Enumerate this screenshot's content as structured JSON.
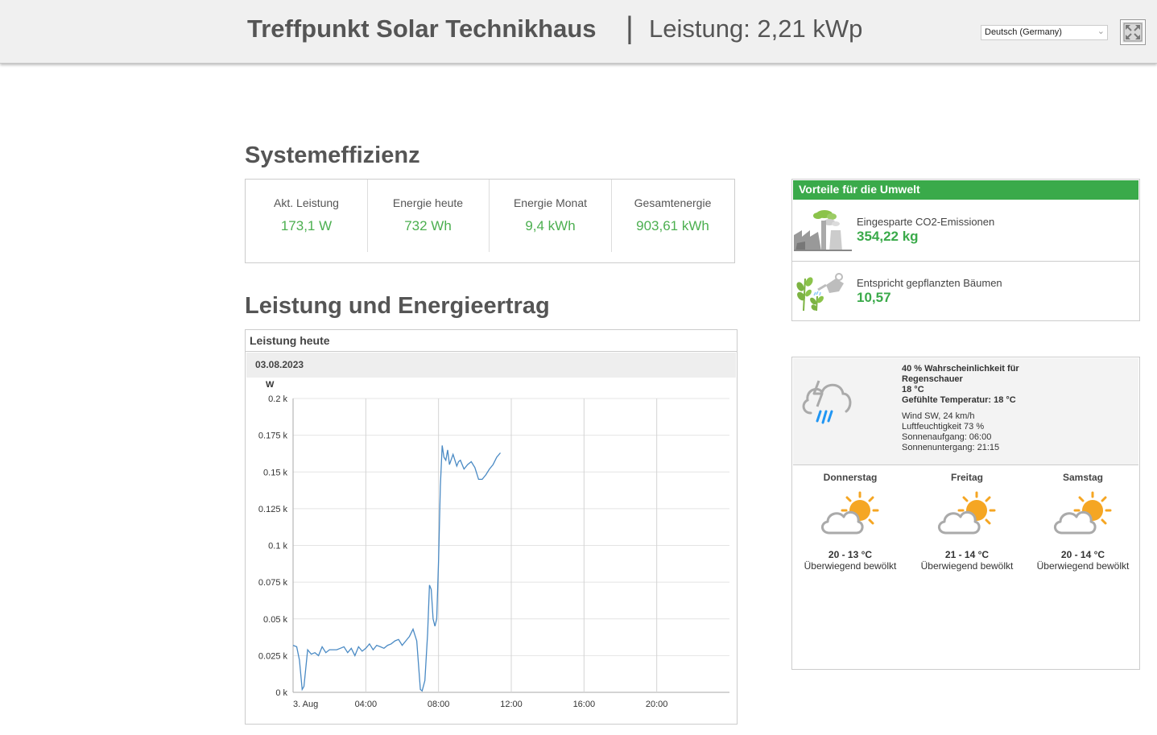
{
  "header": {
    "title": "Treffpunkt Solar Technikhaus",
    "separator": "|",
    "power": "Leistung: 2,21 kWp",
    "language": "Deutsch (Germany)",
    "fullscreen_icon": "fullscreen-icon"
  },
  "efficiency": {
    "heading": "Systemeffizienz",
    "items": [
      {
        "label": "Akt. Leistung",
        "value": "173,1 W"
      },
      {
        "label": "Energie heute",
        "value": "732 Wh"
      },
      {
        "label": "Energie Monat",
        "value": "9,4 kWh"
      },
      {
        "label": "Gesamtenergie",
        "value": "903,61 kWh"
      }
    ],
    "value_color": "#4caf50"
  },
  "chart_section": {
    "heading": "Leistung und Energieertrag",
    "panel_title": "Leistung heute",
    "date": "03.08.2023"
  },
  "chart_data": {
    "type": "line",
    "ylabel": "W",
    "ylim": [
      0,
      0.2
    ],
    "y_unit_suffix": " k",
    "yticks": [
      "0 k",
      "0.025 k",
      "0.05 k",
      "0.075 k",
      "0.1 k",
      "0.125 k",
      "0.15 k",
      "0.175 k",
      "0.2 k"
    ],
    "xlim": [
      0,
      24
    ],
    "xticks": [
      "3. Aug",
      "04:00",
      "08:00",
      "12:00",
      "16:00",
      "20:00"
    ],
    "xtick_hours": [
      0,
      4,
      8,
      12,
      16,
      20
    ],
    "grid": true,
    "line_color": "#4a8ac4",
    "series": [
      {
        "x": [
          0,
          0.2,
          0.35,
          0.5,
          0.6,
          0.8,
          1.0,
          1.2,
          1.4,
          1.6,
          1.8,
          2.0,
          2.2,
          2.4,
          2.6,
          2.8,
          3.0,
          3.2,
          3.4,
          3.6,
          3.8,
          4.0,
          4.2,
          4.4,
          4.6,
          4.8,
          5.0,
          5.2,
          5.4,
          5.6,
          5.8,
          6.0,
          6.2,
          6.4,
          6.6,
          6.8,
          7.0,
          7.1,
          7.25,
          7.4,
          7.5,
          7.6,
          7.7,
          7.8,
          7.9,
          8.0,
          8.1,
          8.2,
          8.3,
          8.4,
          8.5,
          8.6,
          8.8,
          9.0,
          9.1,
          9.2,
          9.4,
          9.6,
          9.8,
          10.0,
          10.2,
          10.4,
          10.6,
          10.8,
          11.0,
          11.2,
          11.4
        ],
        "y": [
          0.032,
          0.031,
          0.022,
          0.002,
          0.004,
          0.029,
          0.026,
          0.027,
          0.025,
          0.031,
          0.027,
          0.029,
          0.029,
          0.029,
          0.03,
          0.031,
          0.027,
          0.03,
          0.025,
          0.031,
          0.028,
          0.03,
          0.033,
          0.029,
          0.032,
          0.031,
          0.03,
          0.032,
          0.033,
          0.035,
          0.036,
          0.032,
          0.035,
          0.038,
          0.043,
          0.035,
          0.002,
          0.001,
          0.008,
          0.04,
          0.073,
          0.07,
          0.05,
          0.045,
          0.05,
          0.09,
          0.14,
          0.168,
          0.16,
          0.158,
          0.165,
          0.155,
          0.162,
          0.154,
          0.157,
          0.158,
          0.152,
          0.155,
          0.157,
          0.153,
          0.145,
          0.145,
          0.148,
          0.152,
          0.155,
          0.16,
          0.163
        ]
      }
    ]
  },
  "environment": {
    "header": "Vorteile für die Umwelt",
    "header_color": "#3aaa4a",
    "items": [
      {
        "icon": "factory-co2-icon",
        "label": "Eingesparte CO2-Emissionen",
        "value": "354,22 kg"
      },
      {
        "icon": "tree-planting-icon",
        "label": "Entspricht gepflanzten Bäumen",
        "value": "10,57"
      }
    ]
  },
  "weather": {
    "current": {
      "icon": "thunder-rain-icon",
      "line1": "40 % Wahrscheinlichkeit für",
      "line2": "Regenschauer",
      "temp": "18 °C",
      "feels": "Gefühlte Temperatur: 18 °C",
      "wind": "Wind SW, 24 km/h",
      "humidity": "Luftfeuchtigkeit 73 %",
      "sunrise": "Sonnenaufgang: 06:00",
      "sunset": "Sonnenuntergang: 21:15"
    },
    "forecast": [
      {
        "day": "Donnerstag",
        "icon": "partly-cloudy-icon",
        "temp": "20 - 13 °C",
        "cond": "Überwiegend bewölkt"
      },
      {
        "day": "Freitag",
        "icon": "partly-cloudy-icon",
        "temp": "21 - 14 °C",
        "cond": "Überwiegend bewölkt"
      },
      {
        "day": "Samstag",
        "icon": "partly-cloudy-icon",
        "temp": "20 - 14 °C",
        "cond": "Überwiegend bewölkt"
      }
    ]
  }
}
